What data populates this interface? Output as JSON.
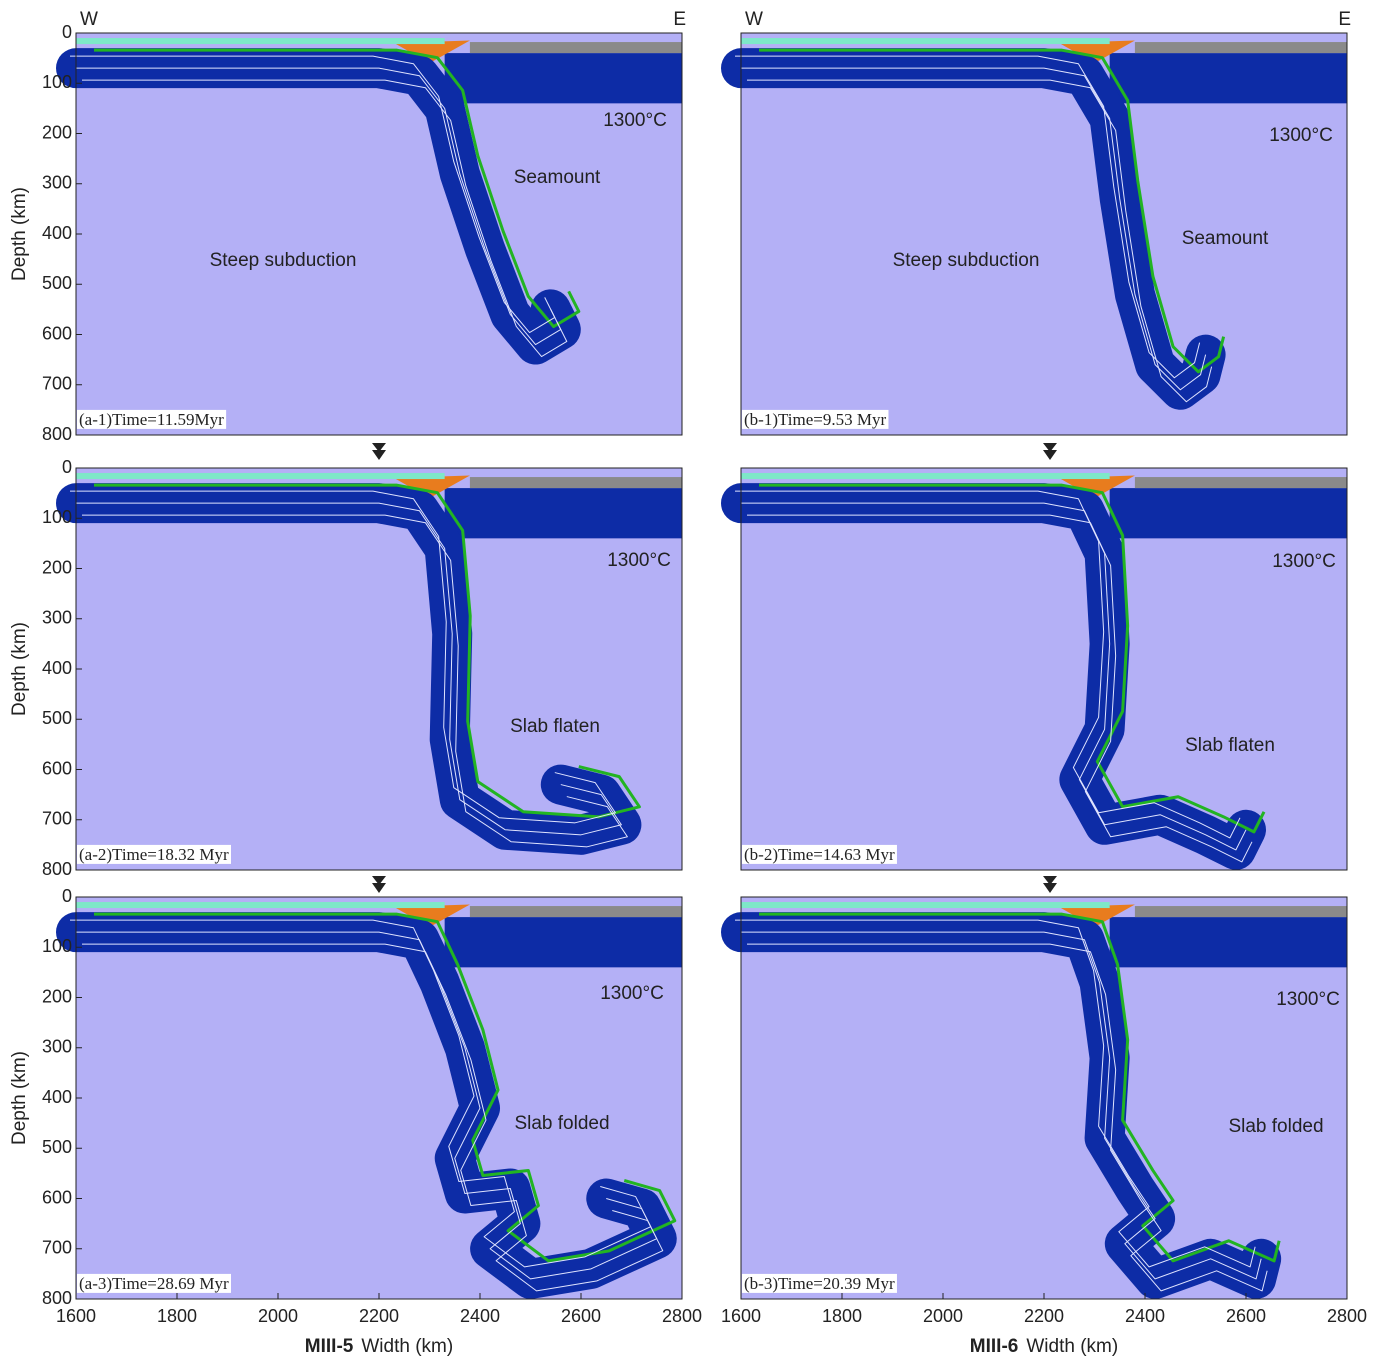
{
  "chart_data": [
    {
      "type": "field",
      "label": "(a-1)Time=11.59Myr",
      "west": "W",
      "east": "E",
      "ylabel": "Depth (km)",
      "annotations": [
        "1300°C",
        "Seamount",
        "Steep subduction"
      ],
      "xlim": [
        1600,
        2800
      ],
      "ylim": [
        0,
        800
      ],
      "yticks": [
        0,
        100,
        200,
        300,
        400,
        500,
        600,
        700,
        800
      ]
    },
    {
      "type": "field",
      "label": "(b-1)Time=9.53 Myr",
      "west": "W",
      "east": "E",
      "annotations": [
        "1300°C",
        "Seamount",
        "Steep subduction"
      ],
      "xlim": [
        1600,
        2800
      ],
      "ylim": [
        0,
        800
      ]
    },
    {
      "type": "field",
      "label": "(a-2)Time=18.32 Myr",
      "ylabel": "Depth (km)",
      "annotations": [
        "1300°C",
        "Slab flaten"
      ],
      "xlim": [
        1600,
        2800
      ],
      "ylim": [
        0,
        800
      ],
      "yticks": [
        0,
        100,
        200,
        300,
        400,
        500,
        600,
        700,
        800
      ]
    },
    {
      "type": "field",
      "label": "(b-2)Time=14.63 Myr",
      "annotations": [
        "1300°C",
        "Slab flaten"
      ],
      "xlim": [
        1600,
        2800
      ],
      "ylim": [
        0,
        800
      ]
    },
    {
      "type": "field",
      "label": "(a-3)Time=28.69 Myr",
      "ylabel": "Depth (km)",
      "annotations": [
        "1300°C",
        "Slab folded"
      ],
      "model": "MIII-5",
      "xlabel": "Width (km)",
      "xlim": [
        1600,
        2800
      ],
      "ylim": [
        0,
        800
      ],
      "yticks": [
        0,
        100,
        200,
        300,
        400,
        500,
        600,
        700,
        800
      ],
      "xticks": [
        1600,
        1800,
        2000,
        2200,
        2400,
        2600,
        2800
      ]
    },
    {
      "type": "field",
      "label": "(b-3)Time=20.39 Myr",
      "annotations": [
        "1300°C",
        "Slab folded"
      ],
      "model": "MIII-6",
      "xlabel": "Width (km)",
      "xlim": [
        1600,
        2800
      ],
      "ylim": [
        0,
        800
      ],
      "xticks": [
        1600,
        1800,
        2000,
        2200,
        2400,
        2600,
        2800
      ]
    }
  ]
}
